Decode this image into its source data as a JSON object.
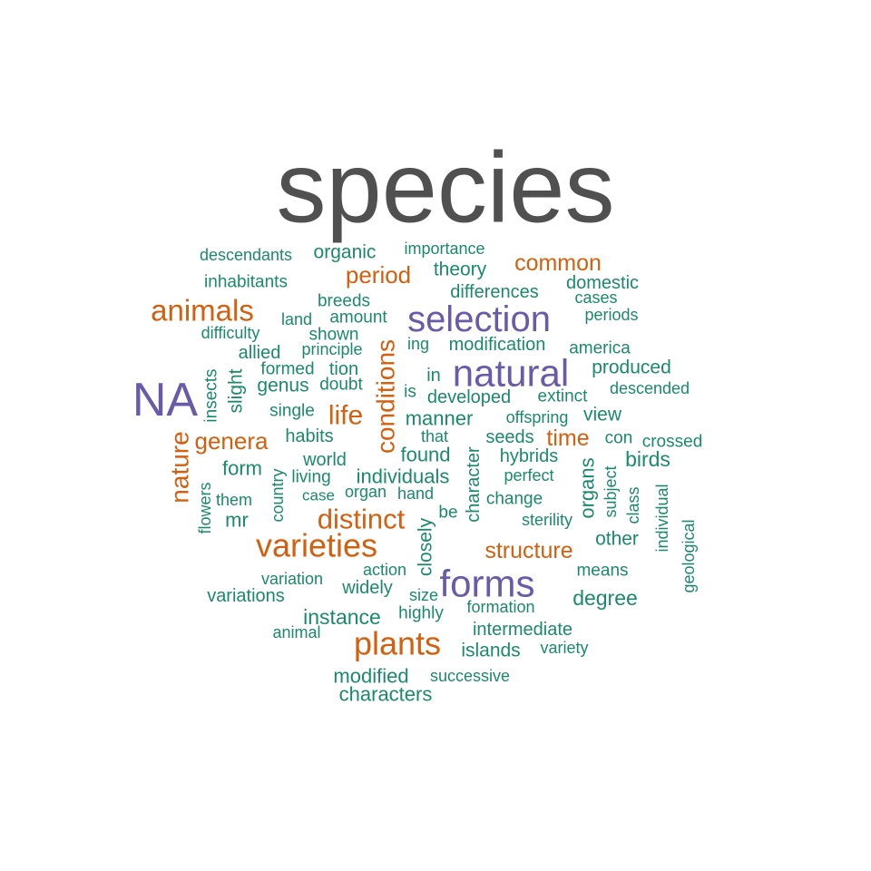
{
  "colors": {
    "gray": "#505050",
    "purple": "#6a5ba8",
    "orange": "#d35f0f",
    "green": "#1b8a6b"
  },
  "words": [
    {
      "text": "species",
      "color": "gray"
    },
    {
      "text": "NA",
      "color": "purple"
    },
    {
      "text": "natural",
      "color": "purple"
    },
    {
      "text": "selection",
      "color": "purple"
    },
    {
      "text": "forms",
      "color": "purple"
    },
    {
      "text": "varieties",
      "color": "orange"
    },
    {
      "text": "plants",
      "color": "orange"
    },
    {
      "text": "animals",
      "color": "orange"
    },
    {
      "text": "distinct",
      "color": "orange"
    },
    {
      "text": "conditions",
      "color": "orange"
    },
    {
      "text": "nature",
      "color": "orange"
    },
    {
      "text": "life",
      "color": "orange"
    },
    {
      "text": "genera",
      "color": "orange"
    },
    {
      "text": "period",
      "color": "orange"
    },
    {
      "text": "common",
      "color": "orange"
    },
    {
      "text": "structure",
      "color": "orange"
    },
    {
      "text": "time",
      "color": "orange"
    },
    {
      "text": "descendants",
      "color": "green"
    },
    {
      "text": "organic",
      "color": "green"
    },
    {
      "text": "importance",
      "color": "green"
    },
    {
      "text": "inhabitants",
      "color": "green"
    },
    {
      "text": "theory",
      "color": "green"
    },
    {
      "text": "domestic",
      "color": "green"
    },
    {
      "text": "differences",
      "color": "green"
    },
    {
      "text": "cases",
      "color": "green"
    },
    {
      "text": "breeds",
      "color": "green"
    },
    {
      "text": "land",
      "color": "green"
    },
    {
      "text": "amount",
      "color": "green"
    },
    {
      "text": "periods",
      "color": "green"
    },
    {
      "text": "difficulty",
      "color": "green"
    },
    {
      "text": "shown",
      "color": "green"
    },
    {
      "text": "allied",
      "color": "green"
    },
    {
      "text": "principle",
      "color": "green"
    },
    {
      "text": "ing",
      "color": "green"
    },
    {
      "text": "modification",
      "color": "green"
    },
    {
      "text": "america",
      "color": "green"
    },
    {
      "text": "formed",
      "color": "green"
    },
    {
      "text": "tion",
      "color": "green"
    },
    {
      "text": "produced",
      "color": "green"
    },
    {
      "text": "insects",
      "color": "green"
    },
    {
      "text": "slight",
      "color": "green"
    },
    {
      "text": "genus",
      "color": "green"
    },
    {
      "text": "doubt",
      "color": "green"
    },
    {
      "text": "in",
      "color": "green"
    },
    {
      "text": "is",
      "color": "green"
    },
    {
      "text": "developed",
      "color": "green"
    },
    {
      "text": "extinct",
      "color": "green"
    },
    {
      "text": "descended",
      "color": "green"
    },
    {
      "text": "single",
      "color": "green"
    },
    {
      "text": "manner",
      "color": "green"
    },
    {
      "text": "offspring",
      "color": "green"
    },
    {
      "text": "view",
      "color": "green"
    },
    {
      "text": "habits",
      "color": "green"
    },
    {
      "text": "that",
      "color": "green"
    },
    {
      "text": "seeds",
      "color": "green"
    },
    {
      "text": "con",
      "color": "green"
    },
    {
      "text": "crossed",
      "color": "green"
    },
    {
      "text": "world",
      "color": "green"
    },
    {
      "text": "found",
      "color": "green"
    },
    {
      "text": "hybrids",
      "color": "green"
    },
    {
      "text": "birds",
      "color": "green"
    },
    {
      "text": "form",
      "color": "green"
    },
    {
      "text": "living",
      "color": "green"
    },
    {
      "text": "individuals",
      "color": "green"
    },
    {
      "text": "perfect",
      "color": "green"
    },
    {
      "text": "character",
      "color": "green"
    },
    {
      "text": "organs",
      "color": "green"
    },
    {
      "text": "subject",
      "color": "green"
    },
    {
      "text": "class",
      "color": "green"
    },
    {
      "text": "individual",
      "color": "green"
    },
    {
      "text": "flowers",
      "color": "green"
    },
    {
      "text": "them",
      "color": "green"
    },
    {
      "text": "country",
      "color": "green"
    },
    {
      "text": "case",
      "color": "green"
    },
    {
      "text": "organ",
      "color": "green"
    },
    {
      "text": "hand",
      "color": "green"
    },
    {
      "text": "change",
      "color": "green"
    },
    {
      "text": "mr",
      "color": "green"
    },
    {
      "text": "be",
      "color": "green"
    },
    {
      "text": "sterility",
      "color": "green"
    },
    {
      "text": "geological",
      "color": "green"
    },
    {
      "text": "closely",
      "color": "green"
    },
    {
      "text": "other",
      "color": "green"
    },
    {
      "text": "action",
      "color": "green"
    },
    {
      "text": "means",
      "color": "green"
    },
    {
      "text": "variation",
      "color": "green"
    },
    {
      "text": "widely",
      "color": "green"
    },
    {
      "text": "variations",
      "color": "green"
    },
    {
      "text": "size",
      "color": "green"
    },
    {
      "text": "degree",
      "color": "green"
    },
    {
      "text": "formation",
      "color": "green"
    },
    {
      "text": "instance",
      "color": "green"
    },
    {
      "text": "highly",
      "color": "green"
    },
    {
      "text": "animal",
      "color": "green"
    },
    {
      "text": "intermediate",
      "color": "green"
    },
    {
      "text": "islands",
      "color": "green"
    },
    {
      "text": "variety",
      "color": "green"
    },
    {
      "text": "modified",
      "color": "green"
    },
    {
      "text": "successive",
      "color": "green"
    },
    {
      "text": "characters",
      "color": "green"
    }
  ]
}
